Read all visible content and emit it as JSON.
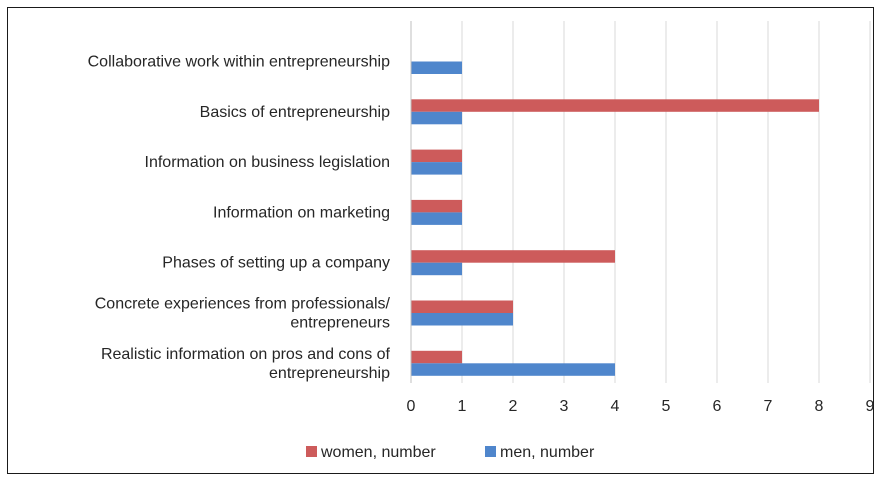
{
  "chart_data": {
    "type": "bar",
    "orientation": "horizontal",
    "categories": [
      "Collaborative work within entrepreneurship",
      "Basics of entrepreneurship",
      "Information on business legislation",
      "Information on marketing",
      "Phases of setting up a company",
      "Concrete experiences from professionals/ entrepreneurs",
      "Realistic information on pros and cons of entrepreneurship"
    ],
    "category_lines": [
      [
        "Collaborative work within entrepreneurship"
      ],
      [
        "Basics of entrepreneurship"
      ],
      [
        "Information on business legislation"
      ],
      [
        "Information on marketing"
      ],
      [
        "Phases of setting up a company"
      ],
      [
        "Concrete experiences from professionals/",
        "entrepreneurs"
      ],
      [
        "Realistic information on pros and cons of",
        "entrepreneurship"
      ]
    ],
    "series": [
      {
        "name": "women, number",
        "color": "#cd5b5b",
        "values": [
          0,
          8,
          1,
          1,
          4,
          2,
          1
        ]
      },
      {
        "name": "men, number",
        "color": "#4f86cc",
        "values": [
          1,
          1,
          1,
          1,
          1,
          2,
          4
        ]
      }
    ],
    "xlim": [
      0,
      9
    ],
    "xticks": [
      "0",
      "1",
      "2",
      "3",
      "4",
      "5",
      "6",
      "7",
      "8",
      "9"
    ],
    "grid": true,
    "legend_position": "bottom",
    "title": "",
    "xlabel": "",
    "ylabel": ""
  }
}
